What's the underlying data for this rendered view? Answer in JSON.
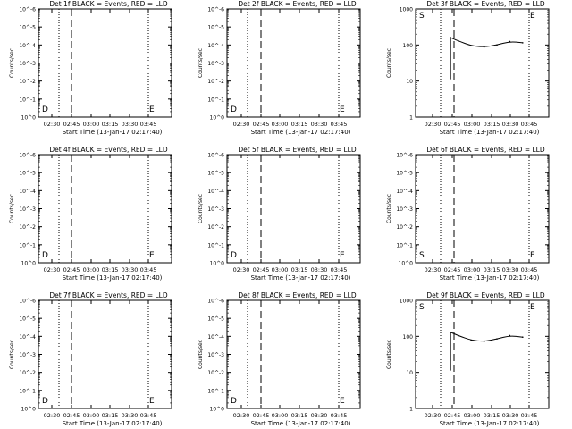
{
  "figure": {
    "xlabel": "Start Time (13-Jan-17 02:17:40)",
    "ylabel": "Counts/sec",
    "x_tick_labels": [
      "02:30",
      "02:45",
      "03:00",
      "03:15",
      "03:30",
      "03:45"
    ]
  },
  "chart_data": [
    {
      "type": "line",
      "title": "Det 1f BLACK = Events, RED = LLD",
      "scale": "log",
      "ytick_labels": [
        "10^0",
        "10^-1",
        "10^-2",
        "10^-3",
        "10^-4",
        "10^-5",
        "10^-6"
      ],
      "ylim_label": "10^-6 to 10^0",
      "series": [],
      "markers": [
        "D",
        "E"
      ]
    },
    {
      "type": "line",
      "title": "Det 2f BLACK = Events, RED = LLD",
      "scale": "log",
      "ytick_labels": [
        "10^0",
        "10^-1",
        "10^-2",
        "10^-3",
        "10^-4",
        "10^-5",
        "10^-6"
      ],
      "series": [],
      "markers": [
        "D",
        "E"
      ]
    },
    {
      "type": "line",
      "title": "Det 3f BLACK = Events, RED = LLD",
      "scale": "log",
      "ylim": [
        1,
        1000
      ],
      "ytick_labels": [
        "1",
        "10",
        "100",
        "1000"
      ],
      "x": [
        "02:44",
        "02:50",
        "03:00",
        "03:10",
        "03:20",
        "03:30",
        "03:40"
      ],
      "series": [
        {
          "values": [
            160,
            130,
            95,
            88,
            100,
            125,
            115
          ]
        }
      ],
      "markers": [
        "S",
        "E"
      ]
    },
    {
      "type": "line",
      "title": "Det 4f BLACK = Events, RED = LLD",
      "scale": "log",
      "ytick_labels": [
        "10^0",
        "10^-1",
        "10^-2",
        "10^-3",
        "10^-4",
        "10^-5",
        "10^-6"
      ],
      "series": [],
      "markers": [
        "D",
        "E"
      ]
    },
    {
      "type": "line",
      "title": "Det 5f BLACK = Events, RED = LLD",
      "scale": "log",
      "ytick_labels": [
        "10^0",
        "10^-1",
        "10^-2",
        "10^-3",
        "10^-4",
        "10^-5",
        "10^-6"
      ],
      "series": [],
      "markers": [
        "D",
        "E"
      ]
    },
    {
      "type": "line",
      "title": "Det 6f BLACK = Events, RED = LLD",
      "scale": "log",
      "ytick_labels": [
        "10^0",
        "10^-1",
        "10^-2",
        "10^-3",
        "10^-4",
        "10^-5",
        "10^-6"
      ],
      "series": [],
      "markers": [
        "S",
        "E"
      ]
    },
    {
      "type": "line",
      "title": "Det 7f BLACK = Events, RED = LLD",
      "scale": "log",
      "ytick_labels": [
        "10^0",
        "10^-1",
        "10^-2",
        "10^-3",
        "10^-4",
        "10^-5",
        "10^-6"
      ],
      "series": [],
      "markers": [
        "D",
        "E"
      ]
    },
    {
      "type": "line",
      "title": "Det 8f BLACK = Events, RED = LLD",
      "scale": "log",
      "ytick_labels": [
        "10^0",
        "10^-1",
        "10^-2",
        "10^-3",
        "10^-4",
        "10^-5",
        "10^-6"
      ],
      "series": [],
      "markers": [
        "D",
        "E"
      ]
    },
    {
      "type": "line",
      "title": "Det 9f BLACK = Events, RED = LLD",
      "scale": "log",
      "ylim": [
        1,
        1000
      ],
      "ytick_labels": [
        "1",
        "10",
        "100",
        "1000"
      ],
      "x": [
        "02:44",
        "02:50",
        "03:00",
        "03:10",
        "03:20",
        "03:30",
        "03:40"
      ],
      "series": [
        {
          "values": [
            130,
            105,
            78,
            72,
            85,
            105,
            95
          ]
        }
      ],
      "markers": [
        "S",
        "E"
      ]
    }
  ]
}
